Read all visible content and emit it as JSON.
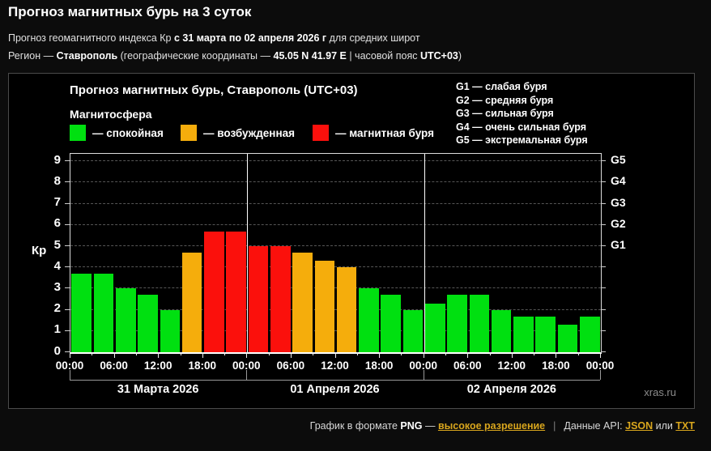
{
  "page": {
    "title": "Прогноз магнитных бурь на 3 суток",
    "subtitle": {
      "pre": "Прогноз геомагнитного индекса Кр ",
      "bold": "с 31 марта по 02 апреля 2026 г",
      "post": " для средних широт"
    },
    "region": {
      "label": "Регион — ",
      "name": "Ставрополь",
      "coords_pre": " (географические координаты — ",
      "coords": "45.05 N 41.97 E",
      "tz_pre": " | часовой пояс ",
      "tz": "UTC+03",
      "close": ")"
    }
  },
  "chart": {
    "title": "Прогноз магнитных бурь, Ставрополь (UTC+03)",
    "legend_title": "Магнитосфера",
    "legend": [
      {
        "label": "— спокойная",
        "color": "#00e010"
      },
      {
        "label": "— возбужденная",
        "color": "#f5ad0c"
      },
      {
        "label": "— магнитная буря",
        "color": "#fb100c"
      }
    ],
    "g_legend": [
      "G1 — слабая буря",
      "G2 — средняя буря",
      "G3 — сильная буря",
      "G4 — очень сильная буря",
      "G5 — экстремальная буря"
    ],
    "watermark": "xras.ru"
  },
  "chart_data": {
    "type": "bar",
    "title": "Прогноз магнитных бурь, Ставрополь (UTC+03)",
    "ylabel": "Кр",
    "ylim": [
      0,
      9
    ],
    "yticks": [
      0,
      1,
      2,
      3,
      4,
      5,
      6,
      7,
      8,
      9
    ],
    "grid": "dashed horizontal line at each integer Kp",
    "right_axis": [
      {
        "label": "G1",
        "kp": 5
      },
      {
        "label": "G2",
        "kp": 6
      },
      {
        "label": "G3",
        "kp": 7
      },
      {
        "label": "G4",
        "kp": 8
      },
      {
        "label": "G5",
        "kp": 9
      }
    ],
    "hour_ticks": [
      "00:00",
      "06:00",
      "12:00",
      "18:00"
    ],
    "closing_hour": "00:00",
    "interval_hours": 3,
    "days": [
      {
        "date": "31 Марта 2026",
        "values": [
          3.7,
          3.7,
          3.0,
          2.7,
          2.0,
          4.7,
          5.7,
          5.7
        ]
      },
      {
        "date": "01 Апреля 2026",
        "values": [
          5.0,
          5.0,
          4.7,
          4.3,
          4.0,
          3.0,
          2.7,
          2.0
        ]
      },
      {
        "date": "02 Апреля 2026",
        "values": [
          2.3,
          2.7,
          2.7,
          2.0,
          1.7,
          1.7,
          1.3,
          1.7
        ]
      }
    ],
    "color_thresholds": [
      {
        "min": 5,
        "color": "#fb100c",
        "meaning": "магнитная буря"
      },
      {
        "min": 4,
        "color": "#f5ad0c",
        "meaning": "возбужденная"
      },
      {
        "min": 0,
        "color": "#00e010",
        "meaning": "спокойная"
      }
    ]
  },
  "footer": {
    "text_pre": "График в формате ",
    "format": "PNG",
    "dash": " — ",
    "hires_link": "высокое разрешение",
    "sep": "|",
    "api_label": "Данные API: ",
    "json_link": "JSON",
    "or_text": " или ",
    "txt_link": "TXT"
  }
}
